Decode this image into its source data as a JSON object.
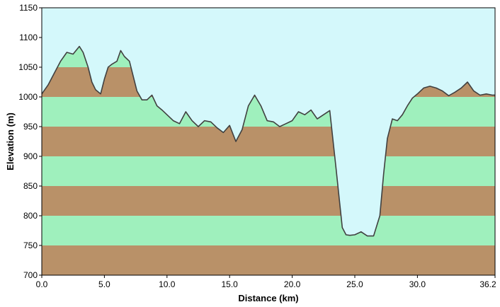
{
  "chart_data": {
    "type": "area",
    "title": "",
    "xlabel": "Distance  (km)",
    "ylabel": "Elevation (m)",
    "xlim": [
      0,
      36.2
    ],
    "ylim": [
      700,
      1150
    ],
    "x_ticks": [
      0,
      5,
      10,
      15,
      20,
      25,
      30,
      36.2
    ],
    "x_tick_labels": [
      "0.0",
      "5.0",
      "10.0",
      "15.0",
      "20.0",
      "25.0",
      "30.0",
      "36.2"
    ],
    "y_ticks": [
      700,
      750,
      800,
      850,
      900,
      950,
      1000,
      1050,
      1100,
      1150
    ],
    "y_tick_labels": [
      "700",
      "750",
      "800",
      "850",
      "900",
      "950",
      "1000",
      "1050",
      "1100",
      "1150"
    ],
    "band_size": 50,
    "grid": false,
    "legend": "none",
    "colors": {
      "sky": "#d4f8fb",
      "band_light": "#9ff0bd",
      "band_dark": "#b99168",
      "line": "#404040",
      "frame": "#000000"
    },
    "series": [
      {
        "x": [
          0.0,
          0.5,
          1.0,
          1.5,
          2.0,
          2.5,
          3.0,
          3.3,
          3.7,
          4.0,
          4.3,
          4.7,
          5.0,
          5.3,
          5.6,
          6.0,
          6.3,
          6.6,
          7.0,
          7.3,
          7.6,
          8.0,
          8.4,
          8.8,
          9.2,
          9.6,
          10.0,
          10.5,
          11.0,
          11.5,
          12.0,
          12.5,
          13.0,
          13.5,
          14.0,
          14.5,
          15.0,
          15.5,
          16.0,
          16.5,
          17.0,
          17.5,
          18.0,
          18.5,
          19.0,
          19.5,
          20.0,
          20.5,
          21.0,
          21.5,
          22.0,
          22.5,
          23.0,
          23.5,
          23.8,
          24.0,
          24.3,
          24.6,
          25.0,
          25.5,
          26.0,
          26.5,
          27.0,
          27.3,
          27.6,
          28.0,
          28.4,
          28.8,
          29.2,
          29.6,
          30.0,
          30.5,
          31.0,
          31.5,
          32.0,
          32.5,
          33.0,
          33.5,
          34.0,
          34.5,
          35.0,
          35.5,
          36.0,
          36.2
        ],
        "y": [
          1005,
          1020,
          1040,
          1060,
          1075,
          1072,
          1085,
          1075,
          1050,
          1025,
          1012,
          1005,
          1030,
          1050,
          1055,
          1060,
          1078,
          1068,
          1060,
          1035,
          1010,
          995,
          995,
          1003,
          985,
          978,
          970,
          960,
          955,
          975,
          960,
          950,
          960,
          958,
          948,
          940,
          952,
          925,
          945,
          985,
          1003,
          985,
          960,
          958,
          950,
          955,
          960,
          975,
          970,
          978,
          963,
          970,
          977,
          880,
          820,
          780,
          768,
          767,
          768,
          773,
          766,
          766,
          800,
          870,
          930,
          963,
          960,
          970,
          985,
          998,
          1005,
          1015,
          1018,
          1015,
          1010,
          1002,
          1008,
          1015,
          1025,
          1010,
          1003,
          1005,
          1003,
          1003
        ]
      }
    ]
  }
}
